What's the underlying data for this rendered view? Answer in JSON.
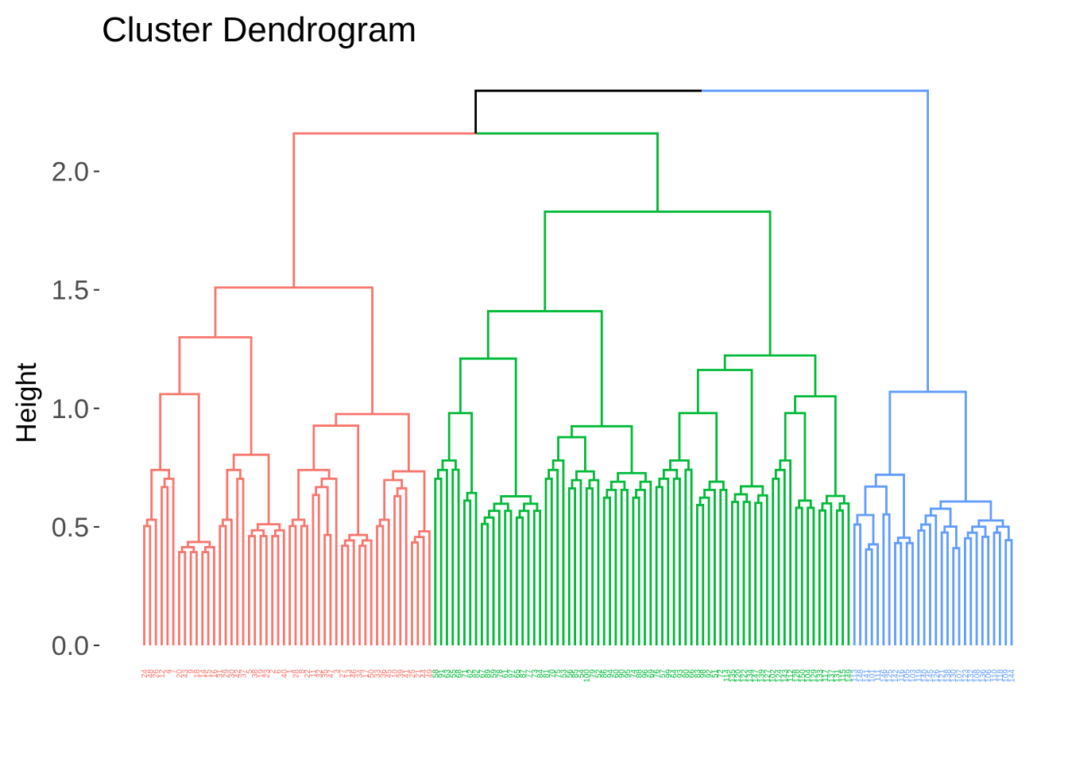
{
  "chart_data": {
    "type": "dendrogram",
    "title": "Cluster Dendrogram",
    "xlabel": "",
    "ylabel": "Height",
    "ylim": [
      0,
      2.35
    ],
    "yticks": [
      0.0,
      0.5,
      1.0,
      1.5,
      2.0
    ],
    "ytick_labels": [
      "0.0",
      "0.5",
      "1.0",
      "1.5",
      "2.0"
    ],
    "grid": false,
    "colors": {
      "red": "#F8766D",
      "green": "#00BA38",
      "blue": "#619CFF",
      "root": "#000000"
    },
    "leaf_count": 150,
    "root_height": 2.34,
    "clusters": [
      {
        "name": "red",
        "color": "#F8766D",
        "leaves": 50,
        "merge_heights": [
          2.16,
          1.51,
          1.3,
          1.06,
          0.74,
          0.53,
          0.78,
          0.71,
          0.5,
          0.53,
          0.45
        ]
      },
      {
        "name": "green",
        "color": "#00BA38",
        "leaves": 72,
        "merge_heights": [
          2.16,
          1.83,
          1.41,
          1.21,
          0.98,
          0.78,
          0.74,
          1.08,
          0.82,
          0.63,
          0.62,
          0.57,
          0.6,
          0.58,
          0.54
        ]
      },
      {
        "name": "blue",
        "color": "#619CFF",
        "leaves": 28,
        "merge_heights": [
          2.34,
          1.07,
          0.72,
          0.67,
          0.55,
          0.51,
          0.49
        ]
      }
    ],
    "leaf_labels": [
      "24",
      "48",
      "26",
      "12",
      "4",
      "7",
      "20",
      "43",
      "9",
      "18",
      "14",
      "15",
      "16",
      "31",
      "29",
      "30",
      "42",
      "37",
      "5",
      "38",
      "19",
      "23",
      "2",
      "6",
      "40",
      "1",
      "28",
      "8",
      "22",
      "11",
      "32",
      "35",
      "47",
      "3",
      "27",
      "13",
      "46",
      "34",
      "17",
      "50",
      "33",
      "36",
      "45",
      "10",
      "39",
      "41",
      "25",
      "21",
      "44",
      "49",
      "58",
      "91",
      "63",
      "55",
      "68",
      "71",
      "62",
      "82",
      "67",
      "89",
      "59",
      "78",
      "61",
      "97",
      "65",
      "87",
      "77",
      "73",
      "84",
      "81",
      "70",
      "75",
      "53",
      "56",
      "85",
      "54",
      "100",
      "79",
      "52",
      "86",
      "94",
      "60",
      "90",
      "95",
      "74",
      "88",
      "96",
      "69",
      "76",
      "57",
      "99",
      "64",
      "93",
      "80",
      "66",
      "83",
      "98",
      "92",
      "51",
      "72",
      "114",
      "135",
      "120",
      "122",
      "134",
      "147",
      "139",
      "127",
      "102",
      "124",
      "143",
      "112",
      "128",
      "150",
      "104",
      "129",
      "133",
      "117",
      "137",
      "131",
      "115",
      "149",
      "113",
      "148",
      "141",
      "101",
      "111",
      "146",
      "125",
      "142",
      "116",
      "105",
      "103",
      "119",
      "140",
      "145",
      "126",
      "121",
      "138",
      "130",
      "107",
      "123",
      "132",
      "108",
      "136",
      "106",
      "110",
      "118",
      "109",
      "144"
    ]
  }
}
